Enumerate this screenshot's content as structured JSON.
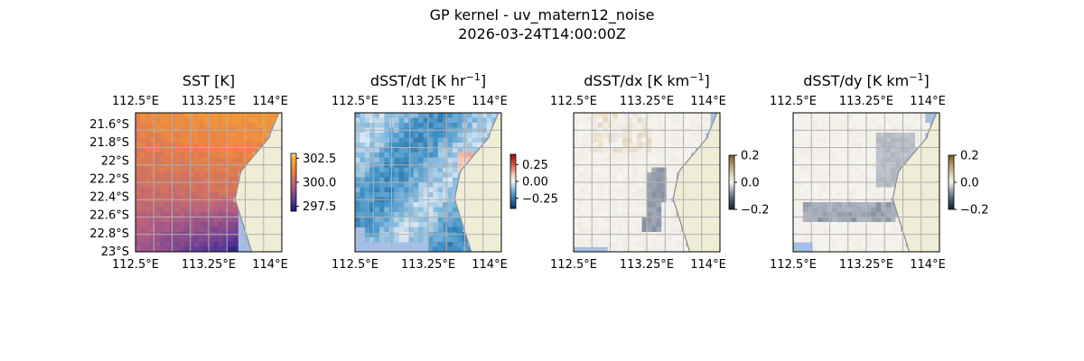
{
  "figure": {
    "title": "GP kernel - uv_matern12_noise",
    "subtitle": "2026-03-24T14:00:00Z"
  },
  "colors": {
    "land": "#efedd6",
    "ocean": "#a6bfe4",
    "coastline": "#8a8a8a",
    "grid": "#b0b0b0"
  },
  "chart_data": [
    {
      "type": "heatmap",
      "title": "SST [K]",
      "title_main": "SST [K]",
      "title_sup": "",
      "title_tail": "",
      "colormap": "plasma-like (purple-orange)",
      "colorbar_ticks": [
        "302.5",
        "300.0",
        "297.5"
      ],
      "colorbar_tick_values": [
        302.5,
        300.0,
        297.5
      ],
      "clim": [
        297.0,
        303.0
      ],
      "x_ticks_top": [
        "112.5°E",
        "113.25°E",
        "114°E"
      ],
      "x_ticks_bottom": [
        "112.5°E",
        "113.25°E",
        "114°E"
      ],
      "y_ticks": [
        "21.6°S",
        "21.8°S",
        "22°S",
        "22.2°S",
        "22.4°S",
        "22.6°S",
        "22.8°S",
        "23°S"
      ],
      "lon_range": [
        112.5,
        114.3
      ],
      "lat_range": [
        -23.05,
        -21.5
      ],
      "notes": "warm (~302.5 K) north-east, cooling to ~297.5 K toward the south-east corner; land on the east side"
    },
    {
      "type": "heatmap",
      "title": "dSST/dt [K hr^-1]",
      "title_main": "dSST/dt [K hr",
      "title_sup": "−1",
      "title_tail": "]",
      "colormap": "diverging blue-white-red",
      "colorbar_ticks": [
        "0.25",
        "0.00",
        "−0.25"
      ],
      "colorbar_tick_values": [
        0.25,
        0.0,
        -0.25
      ],
      "clim": [
        -0.4,
        0.4
      ],
      "x_ticks_top": [
        "112.5°E",
        "113.25°E",
        "114°E"
      ],
      "x_ticks_bottom": [
        "112.5°E",
        "113.25°E",
        "114°E"
      ],
      "lon_range": [
        112.5,
        114.3
      ],
      "lat_range": [
        -23.05,
        -21.5
      ],
      "notes": "mostly negative (light to medium blue), diagonal bands of stronger cooling"
    },
    {
      "type": "heatmap",
      "title": "dSST/dx [K km^-1]",
      "title_main": "dSST/dx [K km",
      "title_sup": "−1",
      "title_tail": "]",
      "colormap": "diverging slate-white-tan",
      "colorbar_ticks": [
        "0.2",
        "0.0",
        "−0.2"
      ],
      "colorbar_tick_values": [
        0.2,
        0.0,
        -0.2
      ],
      "clim": [
        -0.2,
        0.2
      ],
      "x_ticks_top": [
        "112.5°E",
        "113.25°E",
        "114°E"
      ],
      "x_ticks_bottom": [
        "112.5°E",
        "113.25°E",
        "114°E"
      ],
      "lon_range": [
        112.5,
        114.3
      ],
      "lat_range": [
        -23.05,
        -21.5
      ],
      "notes": "near-zero almost everywhere, gray streak along the coast"
    },
    {
      "type": "heatmap",
      "title": "dSST/dy [K km^-1]",
      "title_main": "dSST/dy [K km",
      "title_sup": "−1",
      "title_tail": "]",
      "colormap": "diverging slate-white-tan",
      "colorbar_ticks": [
        "0.2",
        "0.0",
        "−0.2"
      ],
      "colorbar_tick_values": [
        0.2,
        0.0,
        -0.2
      ],
      "clim": [
        -0.2,
        0.2
      ],
      "x_ticks_top": [
        "112.5°E",
        "113.25°E",
        "114°E"
      ],
      "x_ticks_bottom": [
        "112.5°E",
        "113.25°E",
        "114°E"
      ],
      "lon_range": [
        112.5,
        114.3
      ],
      "lat_range": [
        -23.05,
        -21.5
      ],
      "notes": "near-zero, gray bands along the coast and across the south"
    }
  ]
}
